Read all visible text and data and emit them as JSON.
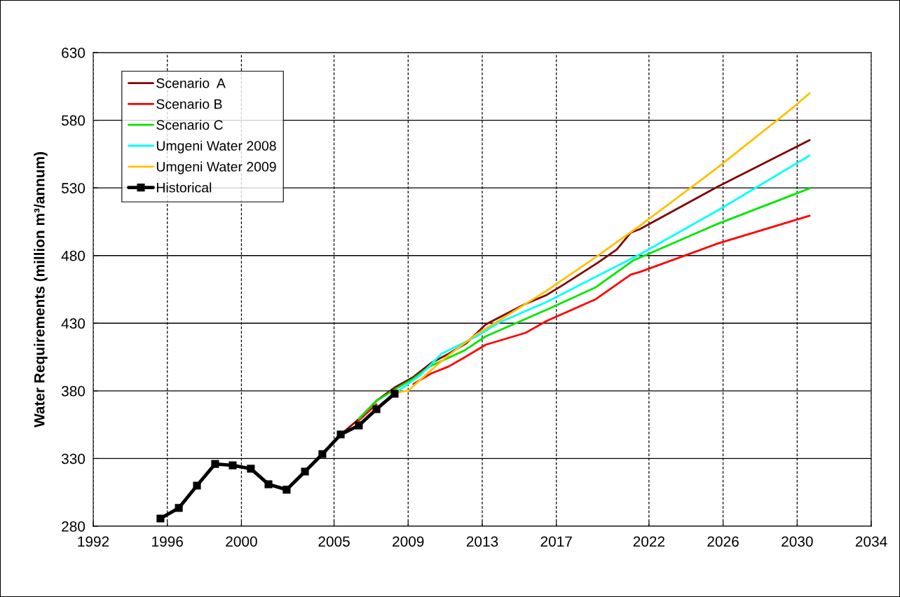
{
  "chart_data": {
    "type": "line",
    "ylabel": "Water Requirements (million m³/annum)",
    "xlim": [
      1992,
      2034
    ],
    "xticks": [
      1992,
      1996,
      2000,
      2005,
      2009,
      2013,
      2017,
      2022,
      2026,
      2030,
      2034
    ],
    "ylim": [
      280,
      630
    ],
    "yticks": [
      280,
      330,
      380,
      430,
      480,
      530,
      580,
      630
    ],
    "grid": true,
    "legend": "top left",
    "series": [
      {
        "name": "Scenario  A",
        "color": "#800000",
        "x": [
          2005.36,
          2006.34,
          2007.29,
          2008.27,
          2009.29,
          2010.24,
          2011.18,
          2012.13,
          2013.19,
          2015.23,
          2016.48,
          2017.35,
          2019.24,
          2020.26,
          2021.02,
          2021.51,
          2025.67,
          2030.67
        ],
        "values": [
          347.8,
          359.2,
          372.7,
          382.5,
          390.3,
          400.6,
          407.4,
          415.1,
          429.1,
          443.6,
          450.9,
          458.2,
          474.7,
          484.5,
          497.0,
          499.5,
          530.6,
          565.3
        ]
      },
      {
        "name": "Scenario B",
        "color": "#ff0000",
        "x": [
          2006.34,
          2007.29,
          2008.27,
          2009.29,
          2010.24,
          2011.18,
          2012.05,
          2013.19,
          2015.34,
          2016.48,
          2019.13,
          2021.02,
          2021.51,
          2025.67,
          2030.67
        ],
        "values": [
          358.2,
          370.1,
          null,
          385.1,
          392.9,
          398.0,
          404.8,
          414.1,
          422.9,
          431.7,
          447.8,
          465.9,
          467.9,
          488.7,
          509.4
        ]
      },
      {
        "name": "Scenario C",
        "color": "#00e600",
        "x": [
          2006.34,
          2007.29,
          2008.27,
          2009.29,
          2010.16,
          2012.05,
          2013.19,
          2016.48,
          2019.13,
          2021.13,
          2025.67,
          2030.67
        ],
        "values": [
          359.2,
          372.7,
          381.0,
          389.2,
          398.0,
          410.0,
          420.3,
          440.0,
          456.6,
          476.2,
          503.2,
          529.6
        ]
      },
      {
        "name": "Umgeni Water 2008",
        "color": "#00ffff",
        "x": [
          2008.46,
          2009.67,
          2010.8,
          2012.7,
          2013.94,
          2016.48,
          2019.13,
          2021.51,
          2025.67,
          2030.67
        ],
        "values": [
          379.9,
          391.8,
          407.4,
          420.3,
          430.7,
          445.7,
          464.3,
          480.9,
          513.0,
          553.9
        ]
      },
      {
        "name": "Umgeni Water 2009",
        "color": "#ffc000",
        "x": [
          2008.46,
          2009.03,
          2010.16,
          2011.18,
          2012.7,
          2013.94,
          2016.48,
          2019.24,
          2021.51,
          2025.67,
          2029.84,
          2030.67
        ],
        "values": [
          378.9,
          380.4,
          394.4,
          406.3,
          421.9,
          432.2,
          454.0,
          479.9,
          502.1,
          544.6,
          590.1,
          600.0
        ]
      },
      {
        "name": "Historical",
        "color": "#000000",
        "marker": "square",
        "x": [
          1995.63,
          1996.62,
          1997.6,
          1998.58,
          1999.53,
          2000.51,
          2001.46,
          2002.44,
          2003.43,
          2004.37,
          2005.36,
          2006.34,
          2007.29,
          2008.27
        ],
        "values": [
          285.7,
          293.5,
          310,
          326,
          325,
          322.5,
          311,
          307,
          320.4,
          333.3,
          347.8,
          354.5,
          366.5,
          377.9
        ]
      }
    ]
  }
}
